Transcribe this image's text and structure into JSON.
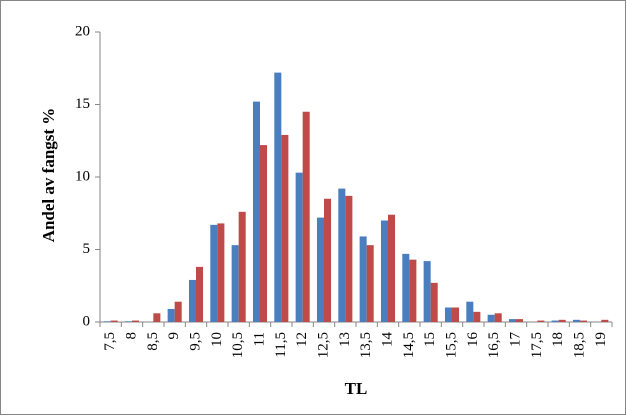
{
  "chart_data": {
    "type": "bar",
    "x_label": "TL",
    "y_label": "Andel av fangst %",
    "categories": [
      "7,5",
      "8",
      "8,5",
      "9",
      "9,5",
      "10",
      "10,5",
      "11",
      "11,5",
      "12",
      "12,5",
      "13",
      "13,5",
      "14",
      "14,5",
      "15",
      "15,5",
      "16",
      "16,5",
      "17",
      "17,5",
      "18",
      "18,5",
      "19"
    ],
    "series": [
      {
        "color": "#4a7ebf",
        "values": [
          0.05,
          0.05,
          0,
          0.9,
          2.9,
          6.7,
          5.3,
          15.2,
          17.2,
          10.3,
          7.2,
          9.2,
          5.9,
          7.0,
          4.7,
          4.2,
          1.0,
          1.4,
          0.5,
          0.2,
          0,
          0.1,
          0.15,
          0
        ]
      },
      {
        "color": "#be4b48",
        "values": [
          0.1,
          0.1,
          0.6,
          1.4,
          3.8,
          6.8,
          7.6,
          12.2,
          12.9,
          14.5,
          8.5,
          8.7,
          5.3,
          7.4,
          4.3,
          2.7,
          1.0,
          0.7,
          0.6,
          0.2,
          0.1,
          0.15,
          0.1,
          0.15
        ]
      }
    ],
    "ylim": [
      0,
      20
    ],
    "yticks": [
      0,
      5,
      10,
      15,
      20
    ],
    "grid": false
  }
}
